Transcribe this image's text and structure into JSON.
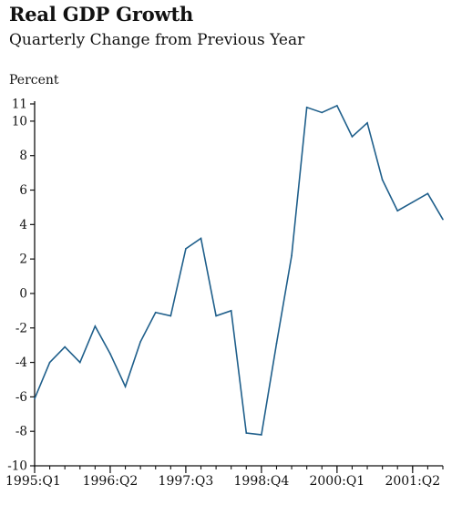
{
  "chart_data": {
    "type": "line",
    "title": "Real GDP Growth",
    "subtitle": "Quarterly Change from Previous Year",
    "ylabel": "Percent",
    "xlabel": "",
    "ylim": [
      -10,
      11
    ],
    "y_ticks": [
      -10,
      -8,
      -6,
      -4,
      -2,
      0,
      2,
      4,
      6,
      8,
      10,
      11
    ],
    "x_ticks": [
      "1995:Q1",
      "1996:Q2",
      "1997:Q3",
      "1998:Q4",
      "2000:Q1",
      "2001:Q2"
    ],
    "x_tick_indices": [
      0,
      5,
      10,
      15,
      20,
      25
    ],
    "grid": false,
    "line_color": "#1f5f8b",
    "categories": [
      "1995:Q1",
      "1995:Q2",
      "1995:Q3",
      "1995:Q4",
      "1996:Q1",
      "1996:Q2",
      "1996:Q3",
      "1996:Q4",
      "1997:Q1",
      "1997:Q2",
      "1997:Q3",
      "1997:Q4",
      "1998:Q1",
      "1998:Q2",
      "1998:Q3",
      "1998:Q4",
      "1999:Q1",
      "1999:Q2",
      "1999:Q3",
      "1999:Q4",
      "2000:Q1",
      "2000:Q2",
      "2000:Q3",
      "2000:Q4",
      "2001:Q1",
      "2001:Q2",
      "2001:Q3",
      "2001:Q4"
    ],
    "series": [
      {
        "values": [
          -6.1,
          -4.0,
          -3.1,
          -4.0,
          -1.9,
          -3.5,
          -5.4,
          -2.8,
          -1.1,
          -1.3,
          2.6,
          3.2,
          -1.3,
          -1.0,
          -8.1,
          -8.2,
          -2.9,
          2.2,
          10.8,
          10.5,
          10.9,
          9.1,
          9.9,
          6.6,
          4.8,
          5.3,
          5.8,
          4.3
        ]
      }
    ]
  }
}
